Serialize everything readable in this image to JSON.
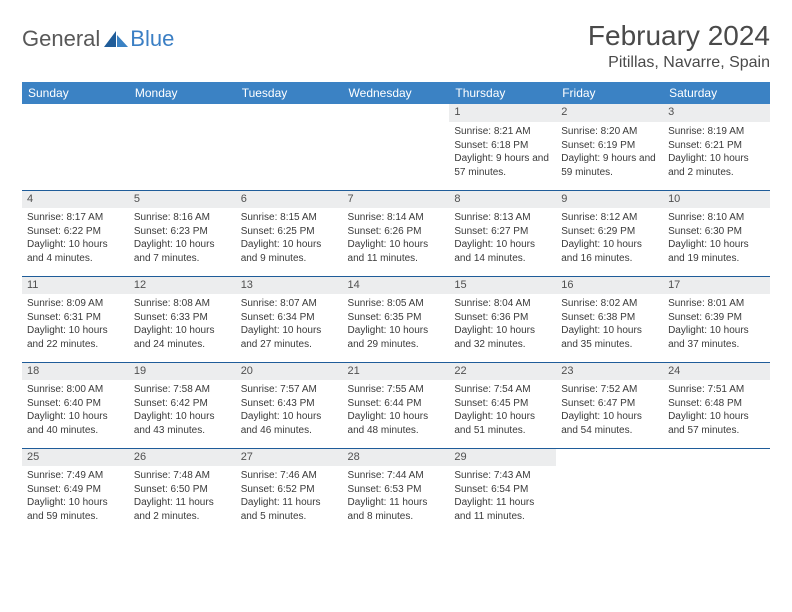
{
  "logo": {
    "general": "General",
    "blue": "Blue"
  },
  "title": "February 2024",
  "location": "Pitillas, Navarre, Spain",
  "colors": {
    "header_bg": "#3b82c4",
    "header_text": "#ffffff",
    "border": "#1f5c99",
    "daynum_bg": "#ecedee",
    "text": "#3a3a3a",
    "logo_gray": "#585858",
    "logo_blue": "#3b7fc4"
  },
  "weekdays": [
    "Sunday",
    "Monday",
    "Tuesday",
    "Wednesday",
    "Thursday",
    "Friday",
    "Saturday"
  ],
  "weeks": [
    [
      null,
      null,
      null,
      null,
      {
        "d": "1",
        "sr": "8:21 AM",
        "ss": "6:18 PM",
        "dl": "9 hours and 57 minutes."
      },
      {
        "d": "2",
        "sr": "8:20 AM",
        "ss": "6:19 PM",
        "dl": "9 hours and 59 minutes."
      },
      {
        "d": "3",
        "sr": "8:19 AM",
        "ss": "6:21 PM",
        "dl": "10 hours and 2 minutes."
      }
    ],
    [
      {
        "d": "4",
        "sr": "8:17 AM",
        "ss": "6:22 PM",
        "dl": "10 hours and 4 minutes."
      },
      {
        "d": "5",
        "sr": "8:16 AM",
        "ss": "6:23 PM",
        "dl": "10 hours and 7 minutes."
      },
      {
        "d": "6",
        "sr": "8:15 AM",
        "ss": "6:25 PM",
        "dl": "10 hours and 9 minutes."
      },
      {
        "d": "7",
        "sr": "8:14 AM",
        "ss": "6:26 PM",
        "dl": "10 hours and 11 minutes."
      },
      {
        "d": "8",
        "sr": "8:13 AM",
        "ss": "6:27 PM",
        "dl": "10 hours and 14 minutes."
      },
      {
        "d": "9",
        "sr": "8:12 AM",
        "ss": "6:29 PM",
        "dl": "10 hours and 16 minutes."
      },
      {
        "d": "10",
        "sr": "8:10 AM",
        "ss": "6:30 PM",
        "dl": "10 hours and 19 minutes."
      }
    ],
    [
      {
        "d": "11",
        "sr": "8:09 AM",
        "ss": "6:31 PM",
        "dl": "10 hours and 22 minutes."
      },
      {
        "d": "12",
        "sr": "8:08 AM",
        "ss": "6:33 PM",
        "dl": "10 hours and 24 minutes."
      },
      {
        "d": "13",
        "sr": "8:07 AM",
        "ss": "6:34 PM",
        "dl": "10 hours and 27 minutes."
      },
      {
        "d": "14",
        "sr": "8:05 AM",
        "ss": "6:35 PM",
        "dl": "10 hours and 29 minutes."
      },
      {
        "d": "15",
        "sr": "8:04 AM",
        "ss": "6:36 PM",
        "dl": "10 hours and 32 minutes."
      },
      {
        "d": "16",
        "sr": "8:02 AM",
        "ss": "6:38 PM",
        "dl": "10 hours and 35 minutes."
      },
      {
        "d": "17",
        "sr": "8:01 AM",
        "ss": "6:39 PM",
        "dl": "10 hours and 37 minutes."
      }
    ],
    [
      {
        "d": "18",
        "sr": "8:00 AM",
        "ss": "6:40 PM",
        "dl": "10 hours and 40 minutes."
      },
      {
        "d": "19",
        "sr": "7:58 AM",
        "ss": "6:42 PM",
        "dl": "10 hours and 43 minutes."
      },
      {
        "d": "20",
        "sr": "7:57 AM",
        "ss": "6:43 PM",
        "dl": "10 hours and 46 minutes."
      },
      {
        "d": "21",
        "sr": "7:55 AM",
        "ss": "6:44 PM",
        "dl": "10 hours and 48 minutes."
      },
      {
        "d": "22",
        "sr": "7:54 AM",
        "ss": "6:45 PM",
        "dl": "10 hours and 51 minutes."
      },
      {
        "d": "23",
        "sr": "7:52 AM",
        "ss": "6:47 PM",
        "dl": "10 hours and 54 minutes."
      },
      {
        "d": "24",
        "sr": "7:51 AM",
        "ss": "6:48 PM",
        "dl": "10 hours and 57 minutes."
      }
    ],
    [
      {
        "d": "25",
        "sr": "7:49 AM",
        "ss": "6:49 PM",
        "dl": "10 hours and 59 minutes."
      },
      {
        "d": "26",
        "sr": "7:48 AM",
        "ss": "6:50 PM",
        "dl": "11 hours and 2 minutes."
      },
      {
        "d": "27",
        "sr": "7:46 AM",
        "ss": "6:52 PM",
        "dl": "11 hours and 5 minutes."
      },
      {
        "d": "28",
        "sr": "7:44 AM",
        "ss": "6:53 PM",
        "dl": "11 hours and 8 minutes."
      },
      {
        "d": "29",
        "sr": "7:43 AM",
        "ss": "6:54 PM",
        "dl": "11 hours and 11 minutes."
      },
      null,
      null
    ]
  ],
  "labels": {
    "sunrise": "Sunrise:",
    "sunset": "Sunset:",
    "daylight": "Daylight:"
  }
}
